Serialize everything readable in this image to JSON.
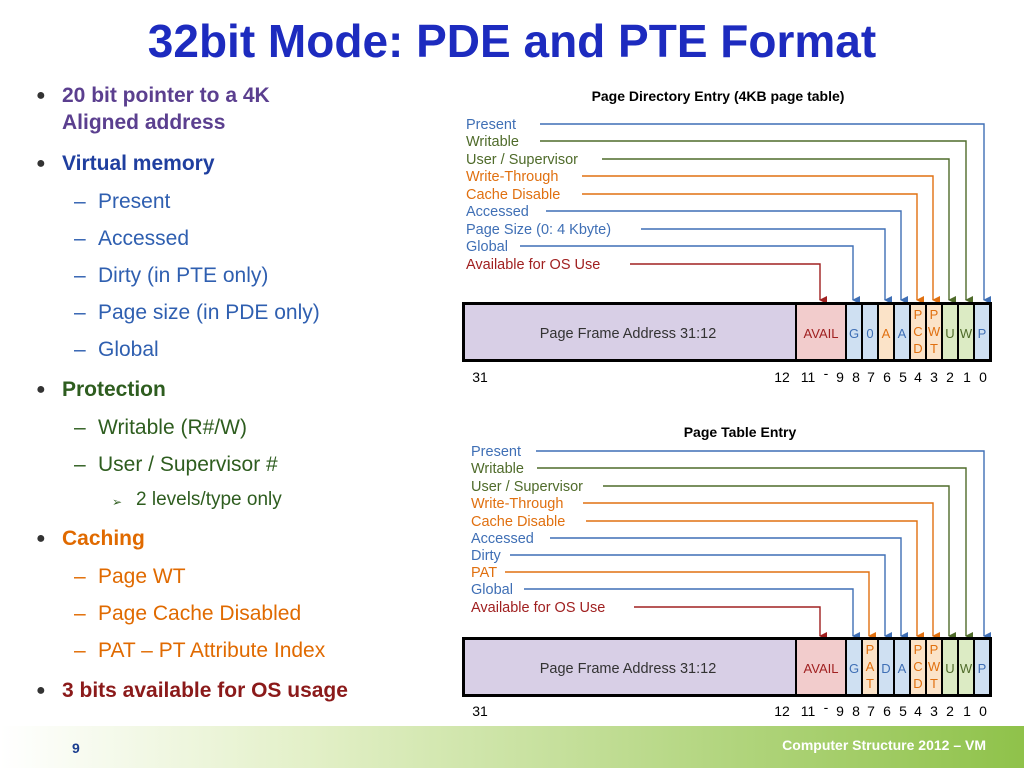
{
  "title": "32bit Mode: PDE and PTE Format",
  "left": {
    "pointer1": "20 bit pointer to a 4K",
    "pointer2": "Aligned address",
    "vm": "Virtual memory",
    "vm_items": [
      "Present",
      "Accessed",
      "Dirty (in PTE only)",
      "Page size (in PDE only)",
      "Global"
    ],
    "protection": "Protection",
    "prot_items": [
      "Writable (R#/W)",
      "User / Supervisor #"
    ],
    "prot_sub": "2 levels/type only",
    "caching": "Caching",
    "cache_items": [
      "Page WT",
      "Page Cache Disabled",
      "PAT – PT Attribute Index"
    ],
    "os": "3 bits available for OS usage"
  },
  "pde": {
    "title": "Page Directory Entry (4KB page table)",
    "labels": [
      "Present",
      "Writable",
      "User / Supervisor",
      "Write-Through",
      "Cache Disable",
      "Accessed",
      "Page Size (0: 4 Kbyte)",
      "Global",
      "Available for OS Use"
    ],
    "frame": "Page Frame Address 31:12",
    "fields": [
      "AVAIL",
      "G",
      "0",
      "A",
      "PCD",
      "PWT",
      "U",
      "W",
      "P"
    ],
    "bits": [
      "31",
      "12",
      "11",
      "-",
      "9",
      "8",
      "7",
      "6",
      "5",
      "4",
      "3",
      "2",
      "1",
      "0"
    ]
  },
  "pte": {
    "title": "Page Table Entry",
    "labels": [
      "Present",
      "Writable",
      "User / Supervisor",
      "Write-Through",
      "Cache Disable",
      "Accessed",
      "Dirty",
      "PAT",
      "Global",
      "Available for OS Use"
    ],
    "frame": "Page Frame Address 31:12",
    "fields": [
      "AVAIL",
      "G",
      "PAT",
      "D",
      "A",
      "PCD",
      "PWT",
      "U",
      "W",
      "P"
    ],
    "bits": [
      "31",
      "12",
      "11",
      "-",
      "9",
      "8",
      "7",
      "6",
      "5",
      "4",
      "3",
      "2",
      "1",
      "0"
    ]
  },
  "colors": {
    "blue": "#3f6fb5",
    "green": "#4f6b2a",
    "orange": "#e07010",
    "red": "#a02020",
    "purple_box": "#d8cfe6",
    "pink_box": "#f2cccc",
    "blue_box": "#cfe0f2",
    "orange_box": "#fbe3c8",
    "green_box": "#dcebc4"
  },
  "footer": {
    "page": "9",
    "text": "Computer Structure 2012 – VM"
  }
}
